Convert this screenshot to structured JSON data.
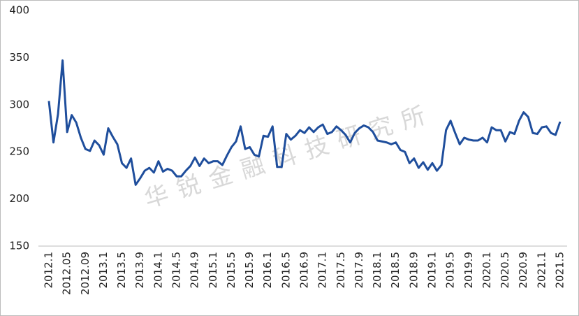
{
  "chart_data": {
    "type": "line",
    "watermark": "华锐金融科技研究所",
    "categories": [
      "2012.1",
      null,
      null,
      null,
      "2012.05",
      null,
      null,
      null,
      "2012.09",
      null,
      null,
      null,
      "2013.1",
      null,
      null,
      null,
      "2013.5",
      null,
      null,
      null,
      "2013.9",
      null,
      null,
      null,
      "2014.1",
      null,
      null,
      null,
      "2014.5",
      null,
      null,
      null,
      "2014.9",
      null,
      null,
      null,
      "2015.1",
      null,
      null,
      null,
      "2015.5",
      null,
      null,
      null,
      "2015.9",
      null,
      null,
      null,
      "2016.1",
      null,
      null,
      null,
      "2016.5",
      null,
      null,
      null,
      "2016.9",
      null,
      null,
      null,
      "2017.1",
      null,
      null,
      null,
      "2017.5",
      null,
      null,
      null,
      "2017.9",
      null,
      null,
      null,
      "2018.1",
      null,
      null,
      null,
      "2018.5",
      null,
      null,
      null,
      "2018.9",
      null,
      null,
      null,
      "2019.1",
      null,
      null,
      null,
      "2019.5",
      null,
      null,
      null,
      "2019.9",
      null,
      null,
      null,
      "2020.1",
      null,
      null,
      null,
      "2020.5",
      null,
      null,
      null,
      "2020.9",
      null,
      null,
      null,
      "2021.1",
      null,
      null,
      null,
      "2021.5"
    ],
    "values": [
      304,
      260,
      290,
      347,
      271,
      289,
      281,
      265,
      253,
      251,
      262,
      257,
      247,
      275,
      266,
      258,
      238,
      233,
      243,
      215,
      222,
      230,
      233,
      228,
      240,
      229,
      232,
      230,
      224,
      224,
      230,
      235,
      244,
      235,
      243,
      238,
      240,
      240,
      236,
      246,
      255,
      261,
      277,
      253,
      255,
      247,
      245,
      267,
      266,
      277,
      234,
      234,
      269,
      263,
      267,
      273,
      270,
      276,
      271,
      276,
      279,
      269,
      271,
      277,
      273,
      268,
      260,
      270,
      275,
      278,
      276,
      271,
      262,
      261,
      260,
      258,
      260,
      252,
      250,
      238,
      243,
      233,
      239,
      231,
      238,
      230,
      236,
      273,
      283,
      270,
      258,
      265,
      263,
      262,
      262,
      265,
      260,
      276,
      273,
      273,
      261,
      271,
      269,
      283,
      292,
      287,
      270,
      269,
      276,
      277,
      270,
      268,
      282
    ],
    "color": "#1f4e9c",
    "ylim": [
      150,
      400
    ],
    "yticks": [
      150,
      200,
      250,
      300,
      350,
      400
    ],
    "grid": false
  }
}
